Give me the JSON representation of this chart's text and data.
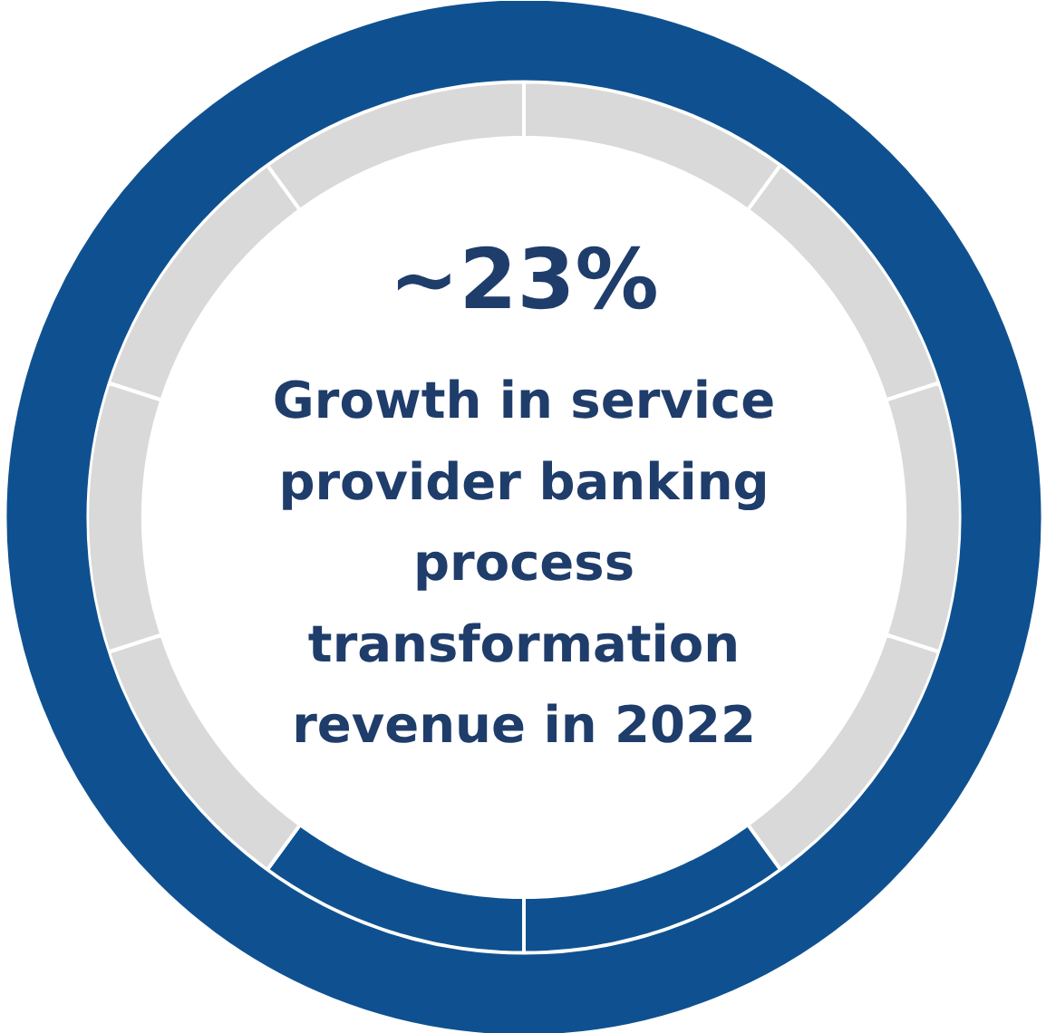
{
  "chart_data": {
    "type": "donut",
    "title": "~23%",
    "subtitle": "Growth in service provider banking process transformation revenue in 2022",
    "categories": [
      null,
      null,
      null,
      null,
      null,
      null,
      null,
      null,
      null,
      null
    ],
    "values": [
      10,
      10,
      10,
      10,
      10,
      10,
      10,
      10,
      10,
      10
    ],
    "colors": [
      "#d9d9d9",
      "#d9d9d9",
      "#d9d9d9",
      "#d9d9d9",
      "#0f5190",
      "#0f5190",
      "#d9d9d9",
      "#d9d9d9",
      "#d9d9d9",
      "#d9d9d9"
    ]
  }
}
